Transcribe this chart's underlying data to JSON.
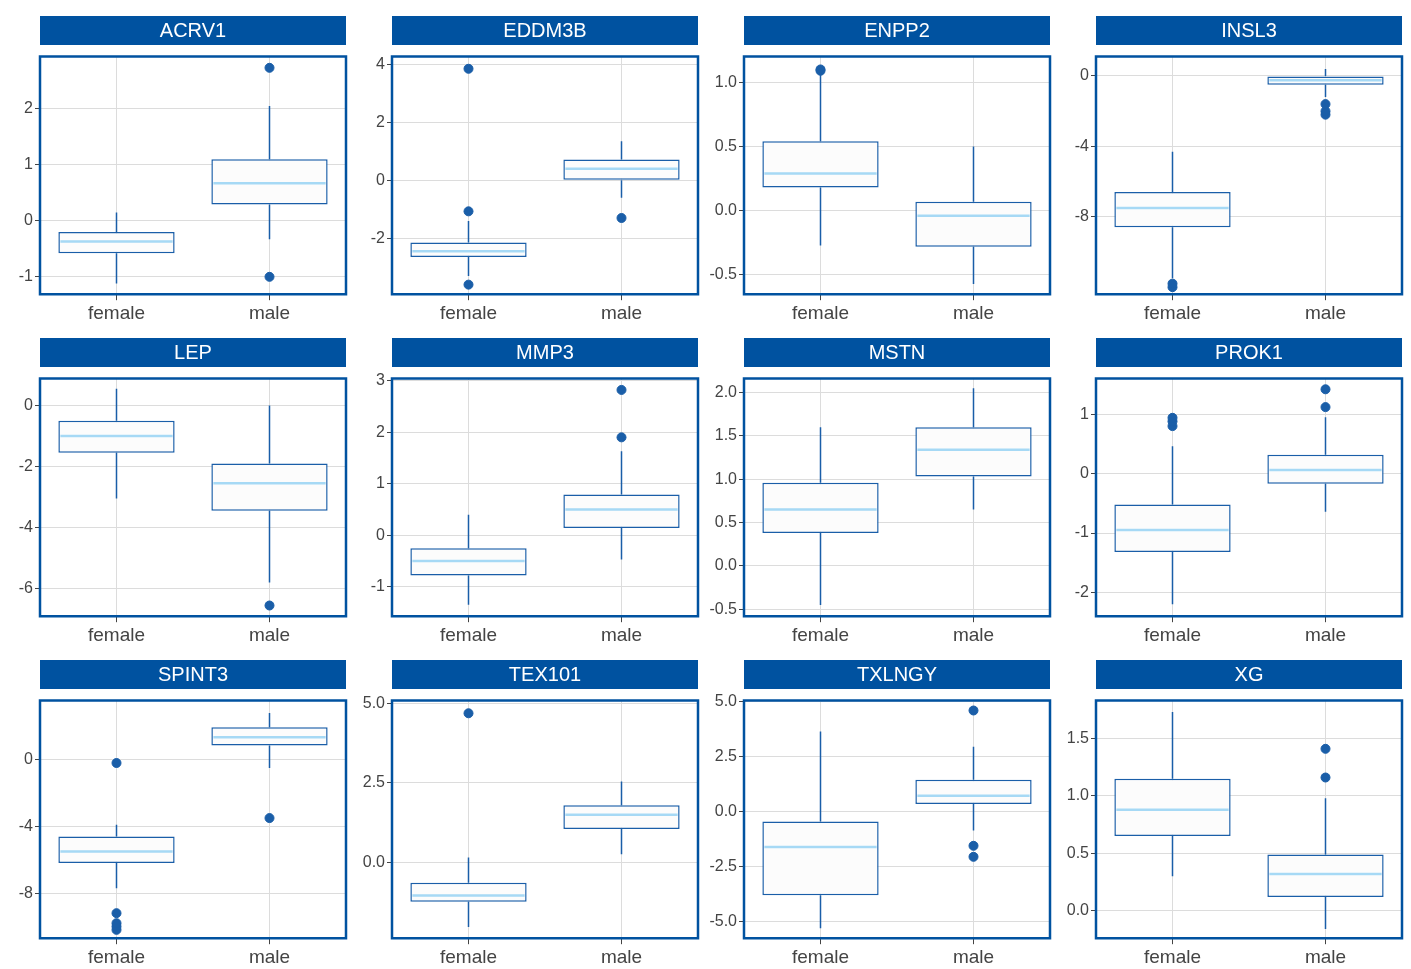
{
  "chart_data": [
    {
      "type": "box",
      "title": "ACRV1",
      "categories": [
        "female",
        "male"
      ],
      "ylim": [
        -1.31,
        2.93
      ],
      "yticks": [
        -1,
        0,
        1,
        2
      ],
      "grid": true,
      "series": [
        {
          "color": "#1a5ea8",
          "boxes": [
            {
              "low": -1.12,
              "q1": -0.58,
              "median": -0.37,
              "q3": -0.2,
              "high": 0.15
            },
            {
              "low": -0.33,
              "q1": 0.29,
              "median": 0.67,
              "q3": 1.1,
              "high": 2.05,
              "outliers": [
                2.73,
                -1.0
              ]
            }
          ]
        }
      ]
    },
    {
      "type": "box",
      "title": "EDDM3B",
      "categories": [
        "female",
        "male"
      ],
      "ylim": [
        -3.93,
        4.27
      ],
      "yticks": [
        -2,
        0,
        2,
        4
      ],
      "grid": true,
      "series": [
        {
          "color": "#1a5ea8",
          "boxes": [
            {
              "low": -3.3,
              "q1": -2.65,
              "median": -2.45,
              "q3": -2.15,
              "high": -1.4,
              "outliers": [
                3.85,
                -1.07,
                -3.6
              ]
            },
            {
              "low": -0.6,
              "q1": 0,
              "median": 0.4,
              "q3": 0.72,
              "high": 1.35,
              "outliers": [
                -1.3
              ]
            }
          ]
        }
      ]
    },
    {
      "type": "box",
      "title": "ENPP2",
      "categories": [
        "female",
        "male"
      ],
      "ylim": [
        -0.65,
        1.2
      ],
      "yticks": [
        {
          "value": -0.5,
          "label": "-0.5"
        },
        {
          "value": 0,
          "label": "0.0"
        },
        {
          "value": 0.5,
          "label": "0.5"
        },
        {
          "value": 1,
          "label": "1.0"
        }
      ],
      "grid": true,
      "series": [
        {
          "color": "#1a5ea8",
          "boxes": [
            {
              "low": -0.27,
              "q1": 0.18,
              "median": 0.29,
              "q3": 0.54,
              "high": 1.08,
              "outliers": [
                1.1,
                1.09
              ]
            },
            {
              "low": -0.57,
              "q1": -0.28,
              "median": -0.04,
              "q3": 0.07,
              "high": 0.5
            }
          ]
        }
      ]
    },
    {
      "type": "box",
      "title": "INSL3",
      "categories": [
        "female",
        "male"
      ],
      "ylim": [
        -12.4,
        1.1
      ],
      "yticks": [
        -8,
        -4,
        0
      ],
      "grid": true,
      "series": [
        {
          "color": "#1a5ea8",
          "boxes": [
            {
              "low": -11.5,
              "q1": -8.6,
              "median": -7.5,
              "q3": -6.6,
              "high": -4.3,
              "outliers": [
                -11.8,
                -12.0
              ]
            },
            {
              "low": -1.2,
              "q1": -0.5,
              "median": -0.25,
              "q3": 0.0,
              "high": 0.4,
              "outliers": [
                -1.6,
                -2.0,
                -2.2
              ]
            }
          ]
        }
      ]
    },
    {
      "type": "box",
      "title": "LEP",
      "categories": [
        "female",
        "male"
      ],
      "ylim": [
        -6.9,
        0.88
      ],
      "yticks": [
        -6,
        -4,
        -2,
        0
      ],
      "grid": true,
      "series": [
        {
          "color": "#1a5ea8",
          "boxes": [
            {
              "low": -3.05,
              "q1": -1.55,
              "median": -1.0,
              "q3": -0.5,
              "high": 0.55
            },
            {
              "low": -5.8,
              "q1": -3.45,
              "median": -2.55,
              "q3": -1.9,
              "high": 0.0,
              "outliers": [
                -6.55
              ]
            }
          ]
        }
      ]
    },
    {
      "type": "box",
      "title": "MMP3",
      "categories": [
        "female",
        "male"
      ],
      "ylim": [
        -1.57,
        3.04
      ],
      "yticks": [
        -1,
        0,
        1,
        2,
        3
      ],
      "grid": true,
      "series": [
        {
          "color": "#1a5ea8",
          "boxes": [
            {
              "low": -1.35,
              "q1": -0.78,
              "median": -0.5,
              "q3": -0.25,
              "high": 0.4
            },
            {
              "low": -0.47,
              "q1": 0.14,
              "median": 0.5,
              "q3": 0.79,
              "high": 1.63,
              "outliers": [
                2.82,
                1.9
              ]
            }
          ]
        }
      ]
    },
    {
      "type": "box",
      "title": "MSTN",
      "categories": [
        "female",
        "male"
      ],
      "ylim": [
        -0.58,
        2.16
      ],
      "yticks": [
        {
          "value": -0.5,
          "label": "-0.5"
        },
        {
          "value": 0,
          "label": "0.0"
        },
        {
          "value": 0.5,
          "label": "0.5"
        },
        {
          "value": 1,
          "label": "1.0"
        },
        {
          "value": 1.5,
          "label": "1.5"
        },
        {
          "value": 2,
          "label": "2.0"
        }
      ],
      "grid": true,
      "series": [
        {
          "color": "#1a5ea8",
          "boxes": [
            {
              "low": -0.45,
              "q1": 0.38,
              "median": 0.65,
              "q3": 0.96,
              "high": 1.6
            },
            {
              "low": 0.65,
              "q1": 1.03,
              "median": 1.34,
              "q3": 1.6,
              "high": 2.05
            }
          ]
        }
      ]
    },
    {
      "type": "box",
      "title": "PROK1",
      "categories": [
        "female",
        "male"
      ],
      "ylim": [
        -2.4,
        1.6
      ],
      "yticks": [
        -2,
        -1,
        0,
        1
      ],
      "grid": true,
      "series": [
        {
          "color": "#1a5ea8",
          "boxes": [
            {
              "low": -2.2,
              "q1": -1.32,
              "median": -0.95,
              "q3": -0.52,
              "high": 0.46,
              "outliers": [
                0.94,
                0.88,
                0.8
              ]
            },
            {
              "low": -0.64,
              "q1": -0.17,
              "median": 0.06,
              "q3": 0.32,
              "high": 0.95,
              "outliers": [
                1.42,
                1.12
              ]
            }
          ]
        }
      ]
    },
    {
      "type": "box",
      "title": "SPINT3",
      "categories": [
        "female",
        "male"
      ],
      "ylim": [
        -10.7,
        3.54
      ],
      "yticks": [
        -8,
        -4,
        0
      ],
      "grid": true,
      "series": [
        {
          "color": "#1a5ea8",
          "boxes": [
            {
              "low": -7.7,
              "q1": -6.2,
              "median": -5.5,
              "q3": -4.6,
              "high": -3.9,
              "outliers": [
                -0.2,
                -9.2,
                -9.8,
                -10.0,
                -10.2
              ]
            },
            {
              "low": -0.5,
              "q1": 0.85,
              "median": 1.35,
              "q3": 1.95,
              "high": 2.8,
              "outliers": [
                -3.5
              ]
            }
          ]
        }
      ]
    },
    {
      "type": "box",
      "title": "TEX101",
      "categories": [
        "female",
        "male"
      ],
      "ylim": [
        -2.4,
        5.1
      ],
      "yticks": [
        {
          "value": 0,
          "label": "0.0"
        },
        2.5,
        {
          "value": 5,
          "label": "5.0"
        }
      ],
      "grid": true,
      "series": [
        {
          "color": "#1a5ea8",
          "boxes": [
            {
              "low": -2.05,
              "q1": -1.25,
              "median": -1.05,
              "q3": -0.65,
              "high": 0.15,
              "outliers": [
                4.7
              ]
            },
            {
              "low": 0.25,
              "q1": 1.05,
              "median": 1.5,
              "q3": 1.8,
              "high": 2.55
            }
          ]
        }
      ]
    },
    {
      "type": "box",
      "title": "TXLNGY",
      "categories": [
        "female",
        "male"
      ],
      "ylim": [
        -5.75,
        5.05
      ],
      "yticks": [
        {
          "value": -5,
          "label": "-5.0"
        },
        -2.5,
        {
          "value": 0,
          "label": "0.0"
        },
        2.5,
        {
          "value": 5,
          "label": "5.0"
        }
      ],
      "grid": true,
      "series": [
        {
          "color": "#1a5ea8",
          "boxes": [
            {
              "low": -5.3,
              "q1": -3.8,
              "median": -1.6,
              "q3": -0.45,
              "high": 3.65
            },
            {
              "low": -0.85,
              "q1": 0.35,
              "median": 0.72,
              "q3": 1.45,
              "high": 2.95,
              "outliers": [
                4.6,
                -1.55,
                -2.05
              ]
            }
          ]
        }
      ]
    },
    {
      "type": "box",
      "title": "XG",
      "categories": [
        "female",
        "male"
      ],
      "ylim": [
        -0.24,
        1.83
      ],
      "yticks": [
        {
          "value": 0,
          "label": "0.0"
        },
        0.5,
        {
          "value": 1,
          "label": "1.0"
        },
        1.5
      ],
      "grid": true,
      "series": [
        {
          "color": "#1a5ea8",
          "boxes": [
            {
              "low": 0.3,
              "q1": 0.65,
              "median": 0.88,
              "q3": 1.15,
              "high": 1.73
            },
            {
              "low": -0.16,
              "q1": 0.12,
              "median": 0.32,
              "q3": 0.49,
              "high": 0.98,
              "outliers": [
                1.41,
                1.16
              ]
            }
          ]
        }
      ]
    }
  ]
}
